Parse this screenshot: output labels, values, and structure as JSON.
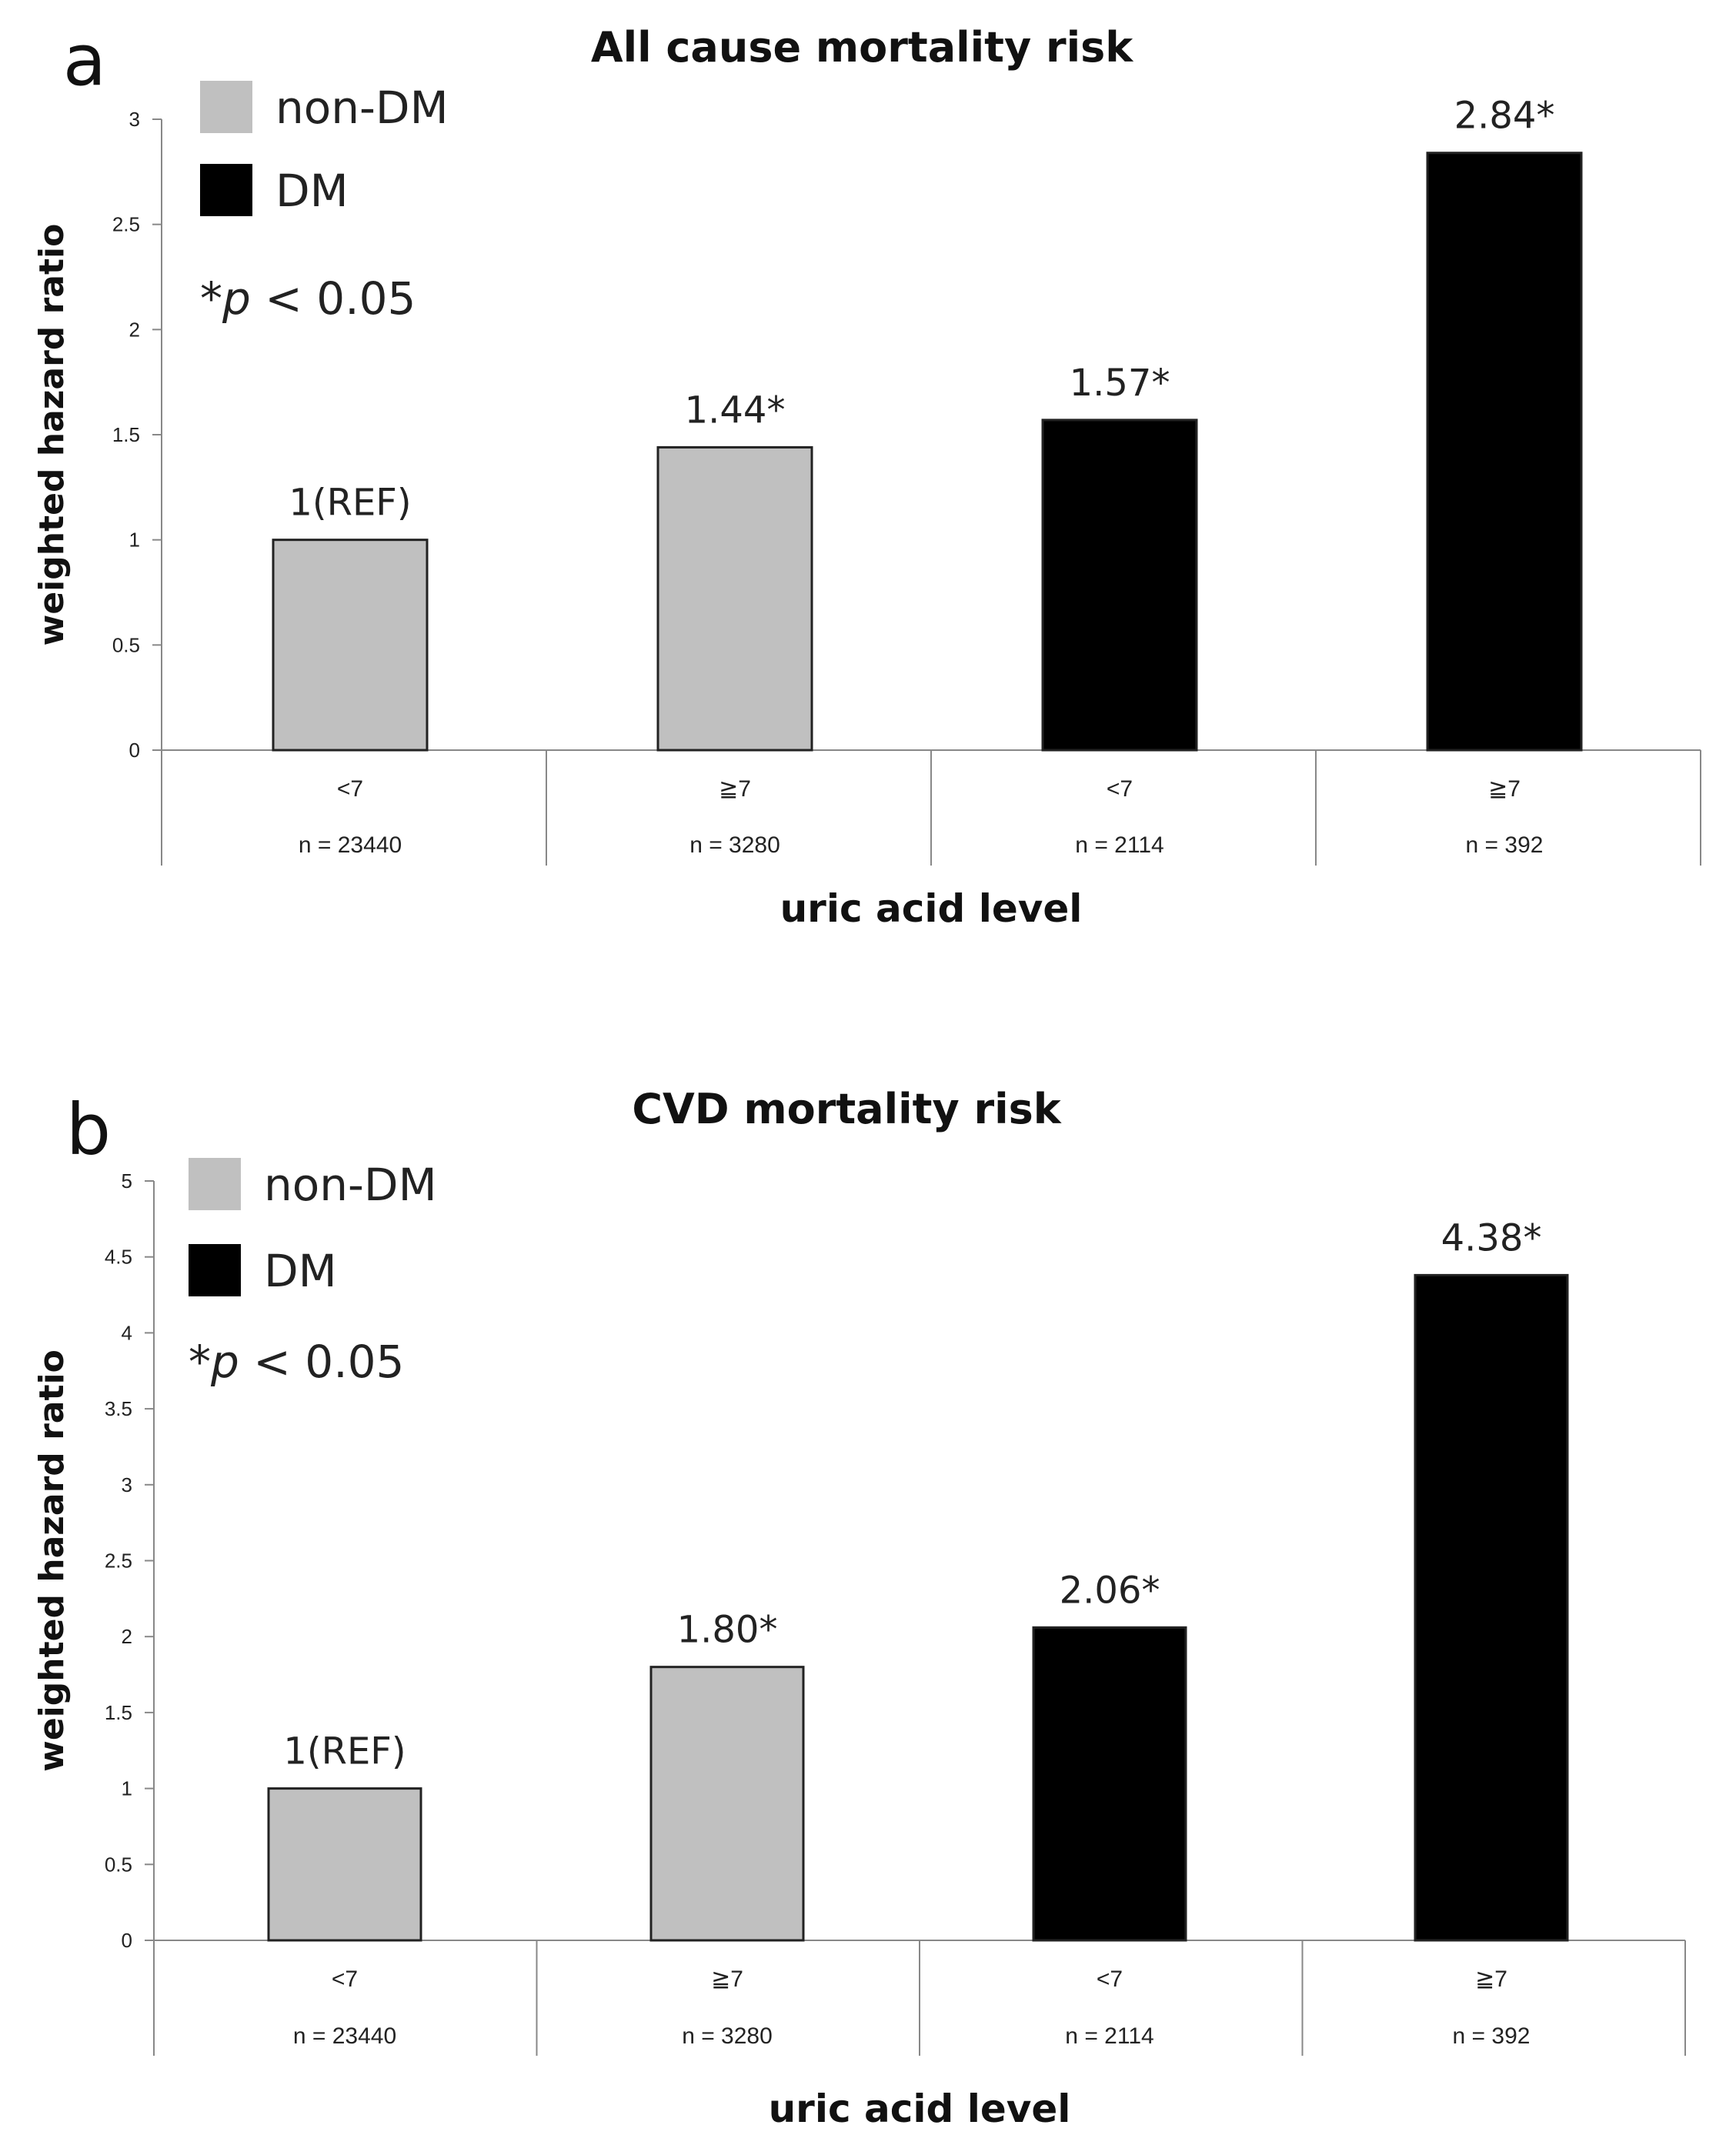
{
  "chart_data": [
    {
      "type": "bar",
      "panel_label": "a",
      "title": "All cause mortality risk",
      "xlabel": "uric acid level",
      "ylabel": "weighted hazard ratio",
      "ylim": [
        0,
        3
      ],
      "yticks": [
        "0",
        "0.5",
        "1",
        "1.5",
        "2",
        "2.5",
        "3"
      ],
      "categories": [
        "<7",
        "≧7",
        "<7",
        "≧7"
      ],
      "n_labels": [
        "n = 23440",
        "n = 3280",
        "n = 2114",
        "n = 392"
      ],
      "values": [
        1,
        1.44,
        1.57,
        2.84
      ],
      "data_labels": [
        "1(REF)",
        "1.44*",
        "1.57*",
        "2.84*"
      ],
      "groups": [
        "non-DM",
        "non-DM",
        "DM",
        "DM"
      ],
      "legend": [
        {
          "name": "non-DM",
          "color": "#c0c0c0"
        },
        {
          "name": "DM",
          "color": "#000000"
        }
      ],
      "significance_note": {
        "star": "*",
        "p": "p",
        "rest": " < 0.05"
      },
      "legend_position": "top-left"
    },
    {
      "type": "bar",
      "panel_label": "b",
      "title": "CVD mortality risk",
      "xlabel": "uric acid level",
      "ylabel": "weighted hazard ratio",
      "ylim": [
        0,
        5
      ],
      "yticks": [
        "0",
        "0.5",
        "1",
        "1.5",
        "2",
        "2.5",
        "3",
        "3.5",
        "4",
        "4.5",
        "5"
      ],
      "categories": [
        "<7",
        "≧7",
        "<7",
        "≧7"
      ],
      "n_labels": [
        "n = 23440",
        "n = 3280",
        "n = 2114",
        "n = 392"
      ],
      "values": [
        1,
        1.8,
        2.06,
        4.38
      ],
      "data_labels": [
        "1(REF)",
        "1.80*",
        "2.06*",
        "4.38*"
      ],
      "groups": [
        "non-DM",
        "non-DM",
        "DM",
        "DM"
      ],
      "legend": [
        {
          "name": "non-DM",
          "color": "#c0c0c0"
        },
        {
          "name": "DM",
          "color": "#000000"
        }
      ],
      "significance_note": {
        "star": "*",
        "p": "p",
        "rest": " < 0.05"
      },
      "legend_position": "top-left"
    }
  ],
  "colors": {
    "non-DM": "#c0c0c0",
    "DM": "#000000",
    "axis": "#888888",
    "bar_edge": "#222222"
  }
}
